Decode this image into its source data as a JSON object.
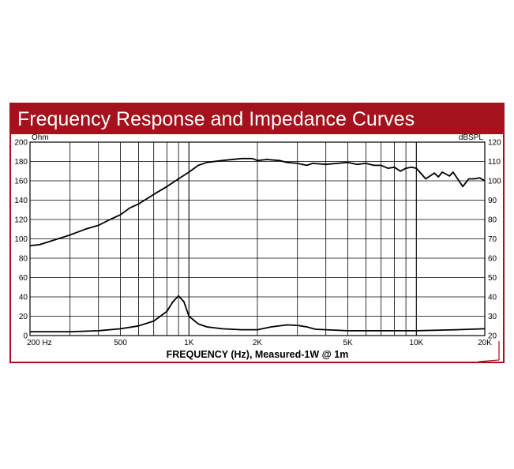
{
  "title": "Frequency Response and Impedance Curves",
  "colors": {
    "accent": "#a3121d",
    "curve": "#000000",
    "grid": "#000000"
  },
  "chart_data": {
    "type": "line",
    "title": "Frequency Response and Impedance Curves",
    "xlabel": "FREQUENCY (Hz), Measured-1W @ 1m",
    "x_scale": "log",
    "xlim": [
      200,
      20000
    ],
    "x_ticks": [
      {
        "value": 200,
        "label": "200 Hz"
      },
      {
        "value": 500,
        "label": "500"
      },
      {
        "value": 1000,
        "label": "1K"
      },
      {
        "value": 2000,
        "label": "2K"
      },
      {
        "value": 5000,
        "label": "5K"
      },
      {
        "value": 10000,
        "label": "10K"
      },
      {
        "value": 20000,
        "label": "20K"
      }
    ],
    "left_axis": {
      "unit": "Ohm",
      "ylim": [
        0,
        200
      ],
      "ticks": [
        0,
        20,
        40,
        60,
        80,
        100,
        120,
        140,
        160,
        180,
        200
      ]
    },
    "right_axis": {
      "unit": "dBSPL",
      "ylim": [
        20,
        120
      ],
      "ticks": [
        20,
        30,
        40,
        50,
        60,
        70,
        80,
        90,
        100,
        110,
        120
      ]
    },
    "grid": true,
    "series": [
      {
        "axis": "right",
        "x": [
          200,
          220,
          250,
          300,
          350,
          400,
          450,
          500,
          550,
          600,
          700,
          800,
          900,
          1000,
          1100,
          1200,
          1400,
          1700,
          1900,
          2000,
          2200,
          2500,
          2700,
          3000,
          3300,
          3500,
          4000,
          4500,
          5000,
          5500,
          6000,
          6500,
          7000,
          7500,
          8000,
          8500,
          9000,
          9500,
          10000,
          11000,
          12000,
          12500,
          13000,
          14000,
          14500,
          15000,
          16000,
          16500,
          17000,
          18000,
          19000,
          20000
        ],
        "y": [
          66.5,
          67,
          69,
          72,
          75,
          77,
          80,
          82.5,
          86,
          88,
          93,
          97,
          101,
          104.5,
          108,
          109.5,
          110.5,
          111.5,
          111.5,
          110.5,
          111,
          110.5,
          109.5,
          109,
          108,
          109,
          108.5,
          109,
          109.5,
          108.5,
          109,
          108,
          108,
          106.5,
          107,
          105,
          106.5,
          107,
          106.5,
          101,
          104,
          102,
          104.5,
          102.5,
          104.5,
          102,
          97,
          99,
          101,
          101,
          101.5,
          100
        ]
      },
      {
        "axis": "left",
        "x": [
          200,
          300,
          400,
          500,
          600,
          700,
          800,
          850,
          900,
          950,
          1000,
          1100,
          1200,
          1400,
          1700,
          2000,
          2300,
          2700,
          3000,
          3300,
          3600,
          4000,
          5000,
          7000,
          10000,
          15000,
          20000
        ],
        "y": [
          4,
          4,
          5,
          7,
          10,
          15,
          25,
          35,
          41,
          35,
          20,
          12,
          9,
          7,
          6,
          6,
          9,
          11,
          10.5,
          9,
          6.5,
          6,
          5,
          5,
          5,
          6,
          7
        ]
      }
    ]
  }
}
